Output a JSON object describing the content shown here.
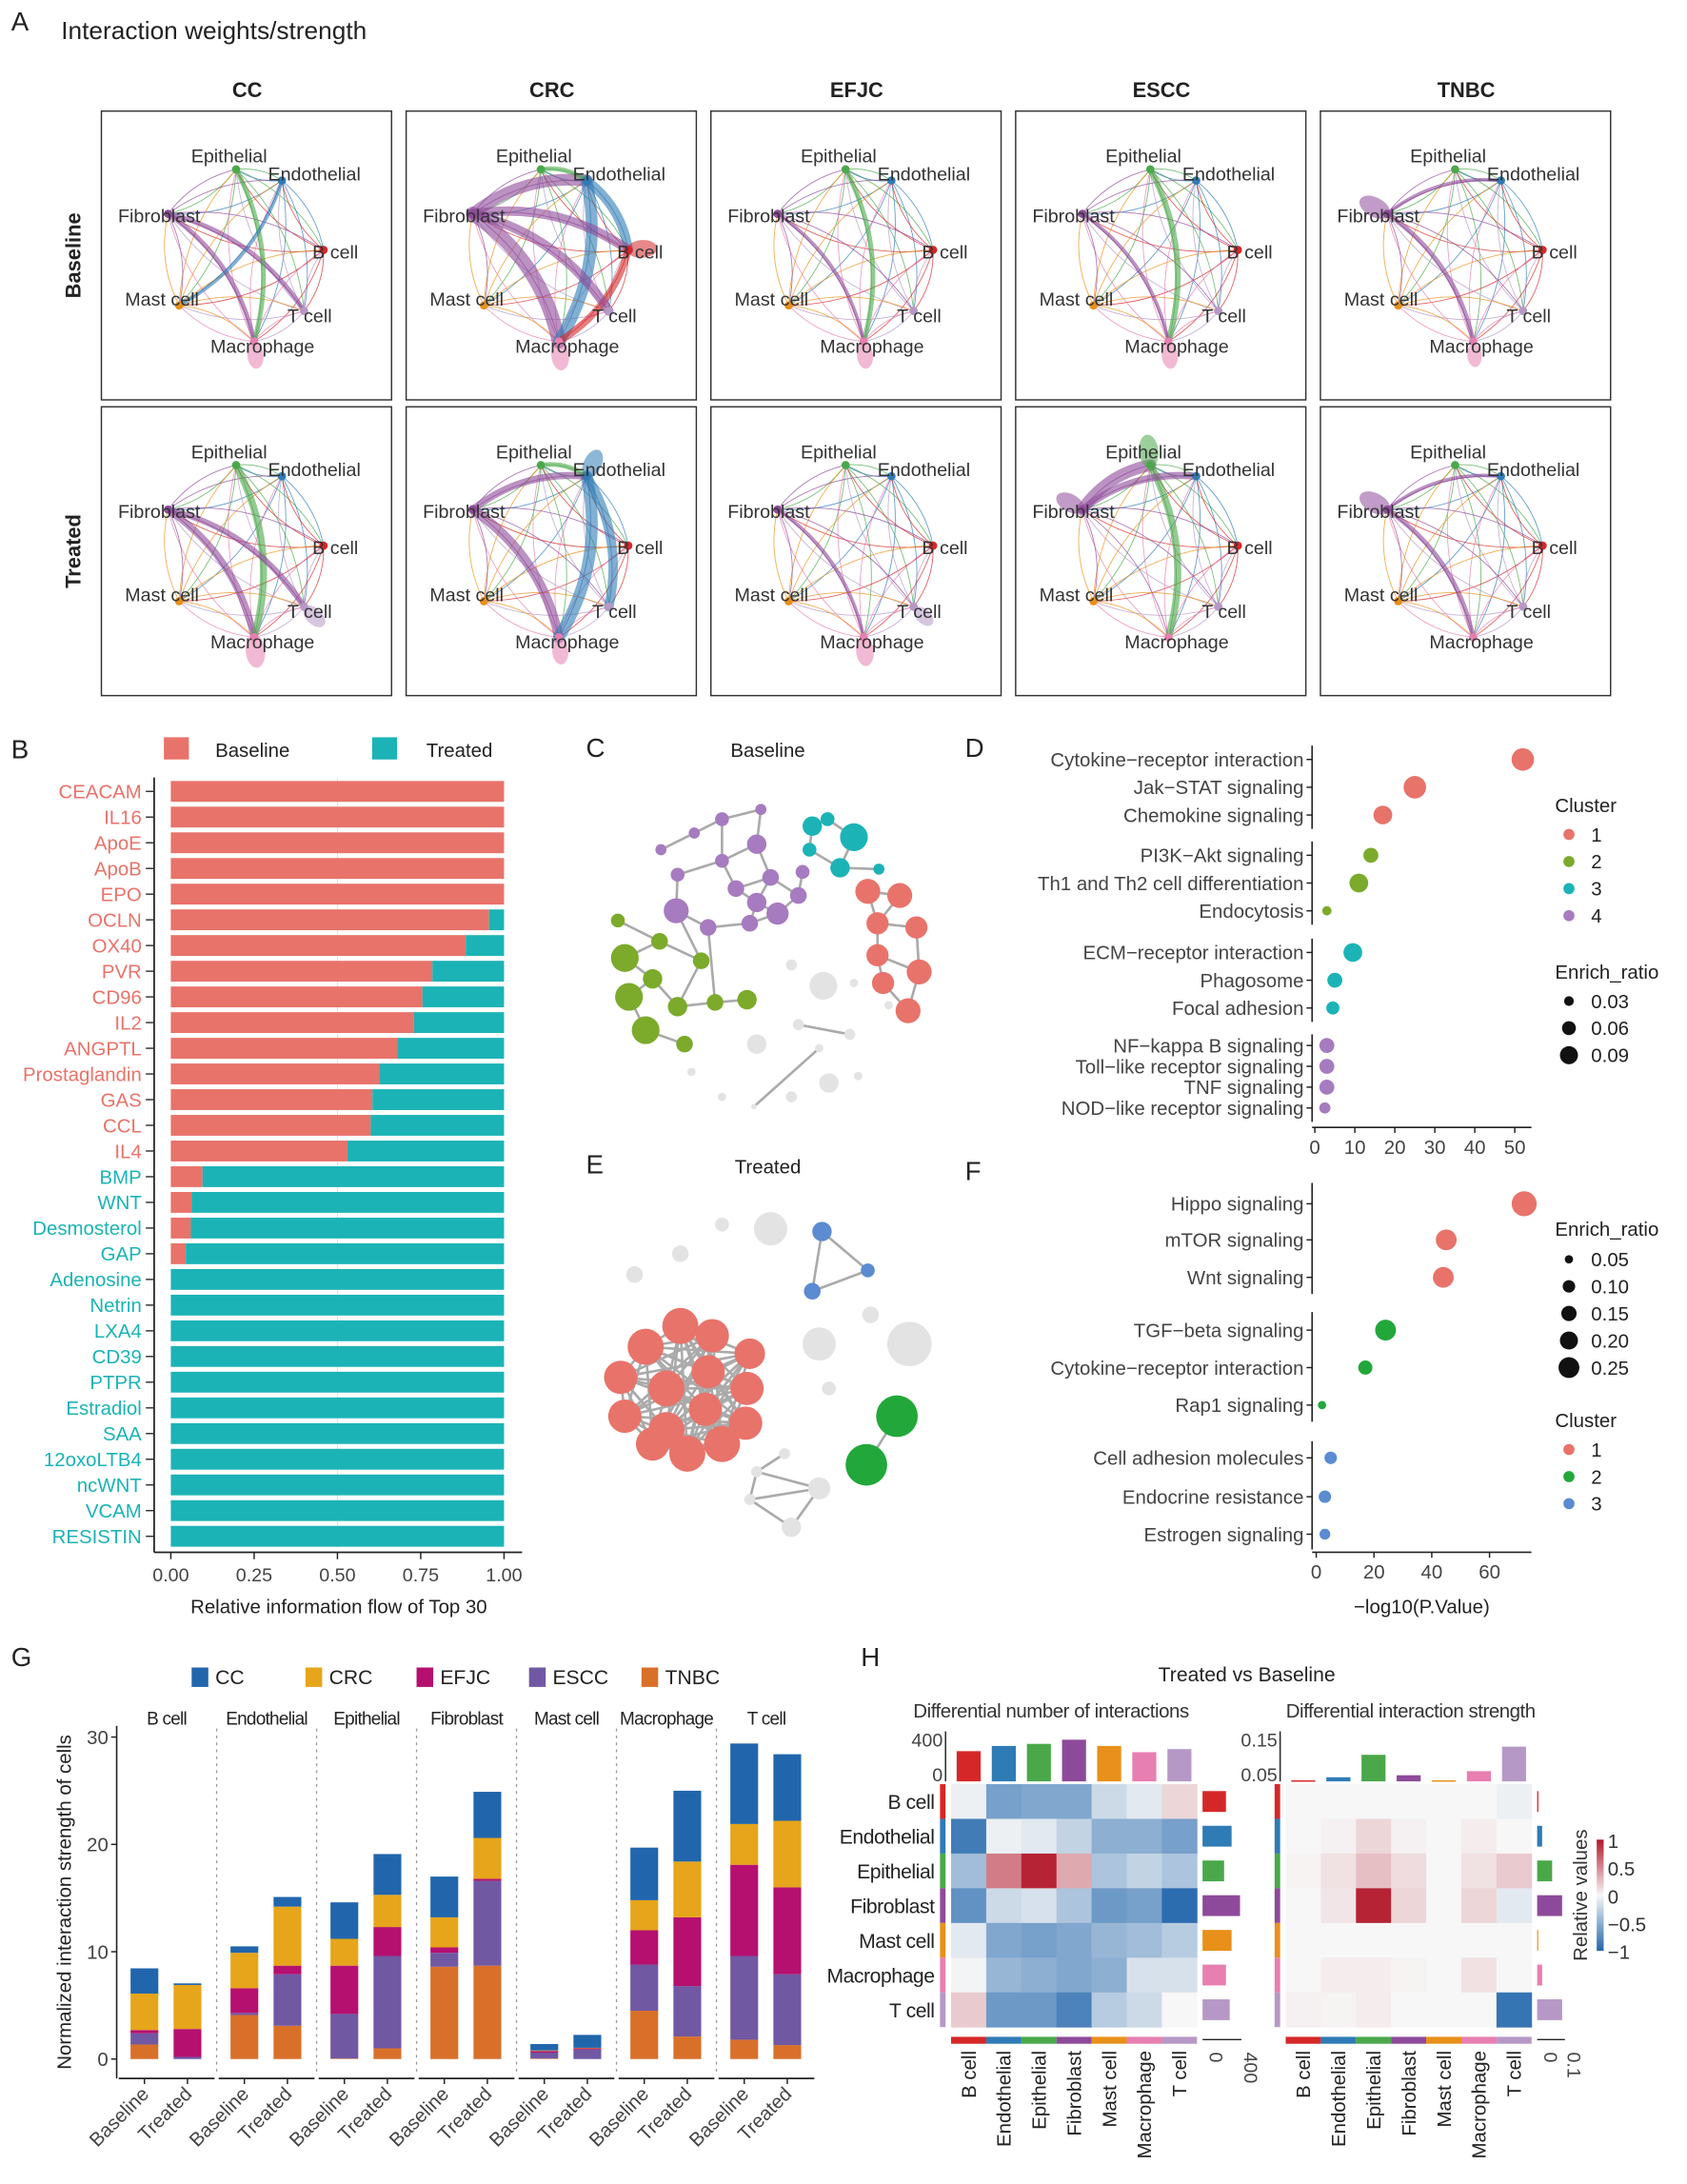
{
  "panelA": {
    "letter": "A",
    "title": "Interaction weights/strength",
    "columns": [
      "CC",
      "CRC",
      "EFJC",
      "ESCC",
      "TNBC"
    ],
    "rows": [
      "Baseline",
      "Treated"
    ],
    "cell_types": [
      "Epithelial",
      "Endothelial",
      "B cell",
      "T cell",
      "Macrophage",
      "Mast cell",
      "Fibroblast"
    ],
    "cell_colors": [
      "#4aa84a",
      "#2f7bb6",
      "#d62728",
      "#b698c6",
      "#e77fb0",
      "#e8901a",
      "#8e4a9a"
    ],
    "strong_edges": [
      [
        [
          [
            6,
            3,
            2
          ],
          [
            6,
            4,
            2
          ],
          [
            0,
            4,
            2
          ],
          [
            1,
            5,
            1.5
          ],
          [
            4,
            4,
            3
          ]
        ],
        [
          [
            6,
            4,
            6
          ],
          [
            6,
            1,
            5
          ],
          [
            1,
            4,
            5
          ],
          [
            1,
            2,
            4
          ],
          [
            6,
            2,
            4
          ],
          [
            2,
            4,
            3
          ],
          [
            6,
            3,
            4
          ],
          [
            0,
            1,
            2
          ],
          [
            4,
            4,
            4
          ],
          [
            2,
            2,
            4
          ]
        ],
        [
          [
            0,
            4,
            2
          ],
          [
            6,
            4,
            1.5
          ],
          [
            4,
            4,
            3
          ]
        ],
        [
          [
            0,
            4,
            2.5
          ],
          [
            6,
            4,
            1.5
          ],
          [
            4,
            4,
            3
          ]
        ],
        [
          [
            6,
            6,
            5
          ],
          [
            6,
            4,
            2
          ],
          [
            6,
            1,
            1.5
          ],
          [
            4,
            4,
            2
          ]
        ]
      ],
      [
        [
          [
            6,
            4,
            3
          ],
          [
            0,
            4,
            3
          ],
          [
            6,
            3,
            2.5
          ],
          [
            4,
            4,
            5
          ],
          [
            3,
            3,
            3
          ]
        ],
        [
          [
            6,
            4,
            4
          ],
          [
            1,
            4,
            5
          ],
          [
            1,
            3,
            4
          ],
          [
            6,
            1,
            3
          ],
          [
            0,
            1,
            2
          ],
          [
            4,
            4,
            3
          ],
          [
            1,
            1,
            4
          ]
        ],
        [
          [
            6,
            4,
            1.5
          ],
          [
            4,
            4,
            4
          ],
          [
            3,
            3,
            2
          ]
        ],
        [
          [
            6,
            0,
            5
          ],
          [
            0,
            4,
            3
          ],
          [
            6,
            1,
            3
          ],
          [
            0,
            0,
            5
          ],
          [
            6,
            6,
            4
          ]
        ],
        [
          [
            6,
            6,
            5
          ],
          [
            6,
            4,
            2
          ],
          [
            6,
            1,
            1.5
          ]
        ]
      ]
    ]
  },
  "chart_data": [
    {
      "panel": "B",
      "letter": "B",
      "type": "bar",
      "orientation": "horizontal-stacked",
      "legend": [
        {
          "name": "Baseline",
          "color": "#e8736a"
        },
        {
          "name": "Treated",
          "color": "#1cb3b6"
        }
      ],
      "categories": [
        "CEACAM",
        "IL16",
        "ApoE",
        "ApoB",
        "EPO",
        "OCLN",
        "OX40",
        "PVR",
        "CD96",
        "IL2",
        "ANGPTL",
        "Prostaglandin",
        "GAS",
        "CCL",
        "IL4",
        "BMP",
        "WNT",
        "Desmosterol",
        "GAP",
        "Adenosine",
        "Netrin",
        "LXA4",
        "CD39",
        "PTPR",
        "Estradiol",
        "SAA",
        "12oxoLTB4",
        "ncWNT",
        "VCAM",
        "RESISTIN"
      ],
      "series": [
        {
          "name": "Baseline",
          "values": [
            1,
            1,
            1,
            1,
            1,
            0.955,
            0.885,
            0.785,
            0.755,
            0.73,
            0.68,
            0.625,
            0.605,
            0.6,
            0.53,
            0.095,
            0.062,
            0.06,
            0.045,
            0,
            0,
            0,
            0,
            0,
            0,
            0,
            0,
            0,
            0,
            0
          ]
        },
        {
          "name": "Treated",
          "values": [
            0,
            0,
            0,
            0,
            0,
            0.045,
            0.115,
            0.215,
            0.245,
            0.27,
            0.32,
            0.375,
            0.395,
            0.4,
            0.47,
            0.905,
            0.938,
            0.94,
            0.955,
            1,
            1,
            1,
            1,
            1,
            1,
            1,
            1,
            1,
            1,
            1
          ]
        }
      ],
      "xticks": [
        "0.00",
        "0.25",
        "0.50",
        "0.75",
        "1.00"
      ],
      "xlabel": "Relative information flow of Top 30",
      "xlim": [
        0,
        1
      ]
    },
    {
      "panel": "C",
      "letter": "C",
      "type": "network",
      "title": "Baseline",
      "clusters": [
        {
          "id": "1",
          "color": "#e8736a"
        },
        {
          "id": "2",
          "color": "#7caa2b"
        },
        {
          "id": "3",
          "color": "#1cb3b6"
        },
        {
          "id": "4",
          "color": "#a77bc0"
        }
      ]
    },
    {
      "panel": "D",
      "letter": "D",
      "type": "scatter",
      "xlabel": "",
      "xlim": [
        0,
        55
      ],
      "xticks": [
        "0",
        "10",
        "20",
        "30",
        "40",
        "50"
      ],
      "legend_cluster_title": "Cluster",
      "clusters": [
        {
          "id": "1",
          "color": "#e8736a"
        },
        {
          "id": "2",
          "color": "#7caa2b"
        },
        {
          "id": "3",
          "color": "#1cb3b6"
        },
        {
          "id": "4",
          "color": "#a77bc0"
        }
      ],
      "legend_size_title": "Enrich_ratio",
      "size_legend": [
        "0.03",
        "0.06",
        "0.09"
      ],
      "points": [
        {
          "term": "Cytokine−receptor interaction",
          "x": 52,
          "ratio": 0.09,
          "cluster": 1
        },
        {
          "term": "Jak−STAT signaling",
          "x": 25,
          "ratio": 0.09,
          "cluster": 1
        },
        {
          "term": "Chemokine signaling",
          "x": 17,
          "ratio": 0.07,
          "cluster": 1
        },
        {
          "term": "PI3K−Akt signaling",
          "x": 14,
          "ratio": 0.05,
          "cluster": 2
        },
        {
          "term": "Th1 and Th2 cell differentiation",
          "x": 11,
          "ratio": 0.07,
          "cluster": 2
        },
        {
          "term": "Endocytosis",
          "x": 3,
          "ratio": 0.02,
          "cluster": 2
        },
        {
          "term": "ECM−receptor interaction",
          "x": 9.5,
          "ratio": 0.07,
          "cluster": 3
        },
        {
          "term": "Phagosome",
          "x": 5,
          "ratio": 0.05,
          "cluster": 3
        },
        {
          "term": "Focal adhesion",
          "x": 4.5,
          "ratio": 0.04,
          "cluster": 3
        },
        {
          "term": "NF−kappa B signaling",
          "x": 3,
          "ratio": 0.05,
          "cluster": 4
        },
        {
          "term": "Toll−like receptor signaling",
          "x": 3,
          "ratio": 0.05,
          "cluster": 4
        },
        {
          "term": "TNF signaling",
          "x": 3,
          "ratio": 0.05,
          "cluster": 4
        },
        {
          "term": "NOD−like receptor signaling",
          "x": 2.5,
          "ratio": 0.03,
          "cluster": 4
        }
      ]
    },
    {
      "panel": "E",
      "letter": "E",
      "type": "network",
      "title": "Treated",
      "clusters": [
        {
          "id": "1",
          "color": "#e8736a"
        },
        {
          "id": "2",
          "color": "#22a83a"
        },
        {
          "id": "3",
          "color": "#5b8bd0"
        }
      ]
    },
    {
      "panel": "F",
      "letter": "F",
      "type": "scatter",
      "xlabel": "−log10(P.Value)",
      "xlim": [
        0,
        75
      ],
      "xticks": [
        "0",
        "20",
        "40",
        "60"
      ],
      "legend_size_title": "Enrich_ratio",
      "size_legend": [
        "0.05",
        "0.10",
        "0.15",
        "0.20",
        "0.25"
      ],
      "legend_cluster_title": "Cluster",
      "clusters": [
        {
          "id": "1",
          "color": "#e8736a"
        },
        {
          "id": "2",
          "color": "#22a83a"
        },
        {
          "id": "3",
          "color": "#5b8bd0"
        }
      ],
      "points": [
        {
          "term": "Hippo signaling",
          "x": 72,
          "ratio": 0.25,
          "cluster": 1
        },
        {
          "term": "mTOR signaling",
          "x": 45,
          "ratio": 0.2,
          "cluster": 1
        },
        {
          "term": "Wnt signaling",
          "x": 44,
          "ratio": 0.2,
          "cluster": 1
        },
        {
          "term": "TGF−beta signaling",
          "x": 24,
          "ratio": 0.2,
          "cluster": 2
        },
        {
          "term": "Cytokine−receptor interaction",
          "x": 17,
          "ratio": 0.12,
          "cluster": 2
        },
        {
          "term": "Rap1 signaling",
          "x": 2,
          "ratio": 0.05,
          "cluster": 2
        },
        {
          "term": "Cell adhesion molecules",
          "x": 5,
          "ratio": 0.1,
          "cluster": 3
        },
        {
          "term": "Endocrine resistance",
          "x": 3,
          "ratio": 0.1,
          "cluster": 3
        },
        {
          "term": "Estrogen signaling",
          "x": 3,
          "ratio": 0.08,
          "cluster": 3
        }
      ]
    },
    {
      "panel": "G",
      "letter": "G",
      "type": "bar",
      "orientation": "vertical-stacked-faceted",
      "ylabel": "Normalized interaction strength of cells",
      "ylim": [
        0,
        30
      ],
      "yticks": [
        "0",
        "10",
        "20",
        "30"
      ],
      "facets": [
        "B cell",
        "Endothelial",
        "Epithelial",
        "Fibroblast",
        "Mast cell",
        "Macrophage",
        "T cell"
      ],
      "conditions": [
        "Baseline",
        "Treated"
      ],
      "legend": [
        "CC",
        "CRC",
        "EFJC",
        "ESCC",
        "TNBC"
      ],
      "colors": {
        "CC": "#2166ac",
        "CRC": "#e6a51a",
        "EFJC": "#b5106f",
        "ESCC": "#7158a3",
        "TNBC": "#d9702a"
      },
      "stack_order_bottom_up": [
        "TNBC",
        "ESCC",
        "EFJC",
        "CRC",
        "CC"
      ],
      "values": {
        "B cell": {
          "Baseline": {
            "TNBC": 1.35,
            "ESCC": 1.05,
            "EFJC": 0.3,
            "CRC": 3.4,
            "CC": 2.35
          },
          "Treated": {
            "TNBC": 0,
            "ESCC": 0.2,
            "EFJC": 2.6,
            "CRC": 4.1,
            "CC": 0.15
          }
        },
        "Endothelial": {
          "Baseline": {
            "TNBC": 4.1,
            "ESCC": 0.2,
            "EFJC": 2.3,
            "CRC": 3.3,
            "CC": 0.6
          },
          "Treated": {
            "TNBC": 3.1,
            "ESCC": 4.8,
            "EFJC": 0.8,
            "CRC": 5.5,
            "CC": 0.9
          }
        },
        "Epithelial": {
          "Baseline": {
            "TNBC": 0.05,
            "ESCC": 4.15,
            "EFJC": 4.5,
            "CRC": 2.5,
            "CC": 3.4
          },
          "Treated": {
            "TNBC": 1.0,
            "ESCC": 8.6,
            "EFJC": 2.7,
            "CRC": 3.0,
            "CC": 3.8
          }
        },
        "Fibroblast": {
          "Baseline": {
            "TNBC": 8.6,
            "ESCC": 1.3,
            "EFJC": 0.5,
            "CRC": 2.8,
            "CC": 3.8
          },
          "Treated": {
            "TNBC": 8.7,
            "ESCC": 7.9,
            "EFJC": 0.2,
            "CRC": 3.8,
            "CC": 4.3
          }
        },
        "Mast cell": {
          "Baseline": {
            "TNBC": 0.05,
            "ESCC": 0.55,
            "EFJC": 0.15,
            "CRC": 0.05,
            "CC": 0.6
          },
          "Treated": {
            "TNBC": 0,
            "ESCC": 0.9,
            "EFJC": 0.1,
            "CRC": 0.05,
            "CC": 1.2
          }
        },
        "Macrophage": {
          "Baseline": {
            "TNBC": 4.5,
            "ESCC": 4.3,
            "EFJC": 3.2,
            "CRC": 2.8,
            "CC": 4.9
          },
          "Treated": {
            "TNBC": 2.1,
            "ESCC": 4.7,
            "EFJC": 6.4,
            "CRC": 5.2,
            "CC": 6.6
          }
        },
        "T cell": {
          "Baseline": {
            "TNBC": 1.8,
            "ESCC": 7.8,
            "EFJC": 8.5,
            "CRC": 3.8,
            "CC": 7.5
          },
          "Treated": {
            "TNBC": 1.3,
            "ESCC": 6.6,
            "EFJC": 8.1,
            "CRC": 6.2,
            "CC": 6.2
          }
        }
      }
    },
    {
      "panel": "H",
      "letter": "H",
      "type": "heatmap",
      "title": "Treated  vs  Baseline",
      "cell_types": [
        "B cell",
        "Endothelial",
        "Epithelial",
        "Fibroblast",
        "Mast cell",
        "Macrophage",
        "T cell"
      ],
      "cell_colors": [
        "#d62728",
        "#2f7bb6",
        "#4aa84a",
        "#8e4a9a",
        "#e8901a",
        "#e77fb0",
        "#b698c6"
      ],
      "colorbar": {
        "label": "Relative values",
        "ticks": [
          "1",
          "0.5",
          "0",
          "−0.5",
          "−1"
        ],
        "range": [
          -1,
          1
        ],
        "low": "#2166ac",
        "mid": "#f7f7f7",
        "high": "#b2182b"
      },
      "maps": [
        {
          "title": "Differential number of interactions",
          "top_ticks": [
            "400",
            "0"
          ],
          "top_max": 400,
          "right_ticks": [
            "0",
            "400"
          ],
          "right_max": 400,
          "col_totals": [
            290,
            340,
            360,
            400,
            340,
            280,
            310
          ],
          "row_totals": [
            250,
            310,
            230,
            400,
            310,
            250,
            290
          ],
          "matrix": [
            [
              -0.05,
              -0.6,
              -0.55,
              -0.55,
              -0.2,
              -0.1,
              0.15
            ],
            [
              -0.85,
              -0.05,
              -0.1,
              -0.25,
              -0.5,
              -0.5,
              -0.6
            ],
            [
              -0.4,
              0.55,
              0.95,
              0.35,
              -0.35,
              -0.25,
              -0.35
            ],
            [
              -0.7,
              -0.2,
              -0.15,
              -0.35,
              -0.65,
              -0.6,
              -0.95
            ],
            [
              -0.1,
              -0.55,
              -0.6,
              -0.55,
              -0.45,
              -0.4,
              -0.3
            ],
            [
              -0.02,
              -0.45,
              -0.5,
              -0.55,
              -0.5,
              -0.15,
              -0.15
            ],
            [
              0.2,
              -0.65,
              -0.65,
              -0.8,
              -0.3,
              -0.2,
              0
            ]
          ]
        },
        {
          "title": "Differential interaction strength",
          "top_ticks": [
            "0.15",
            "0.05"
          ],
          "top_max": 0.17,
          "right_ticks": [
            "0",
            "0.1"
          ],
          "right_max": 0.1,
          "col_totals": [
            0.005,
            0.02,
            0.13,
            0.03,
            0.005,
            0.05,
            0.17
          ],
          "row_totals": [
            0.005,
            0.02,
            0.06,
            0.1,
            0.003,
            0.02,
            0.1
          ],
          "matrix": [
            [
              0,
              0,
              0,
              0,
              0,
              0,
              -0.05
            ],
            [
              0,
              0.03,
              0.15,
              0.03,
              0,
              0.05,
              0
            ],
            [
              0.02,
              0.1,
              0.25,
              0.12,
              0,
              0.1,
              0.2
            ],
            [
              0,
              0.08,
              0.95,
              0.15,
              0,
              0.15,
              -0.1
            ],
            [
              0,
              0,
              0,
              0,
              0,
              0,
              0
            ],
            [
              0,
              0.05,
              0.05,
              0.02,
              0,
              0.1,
              0
            ],
            [
              0.03,
              0.02,
              0.05,
              0,
              0,
              0,
              -0.9
            ]
          ]
        }
      ]
    }
  ]
}
